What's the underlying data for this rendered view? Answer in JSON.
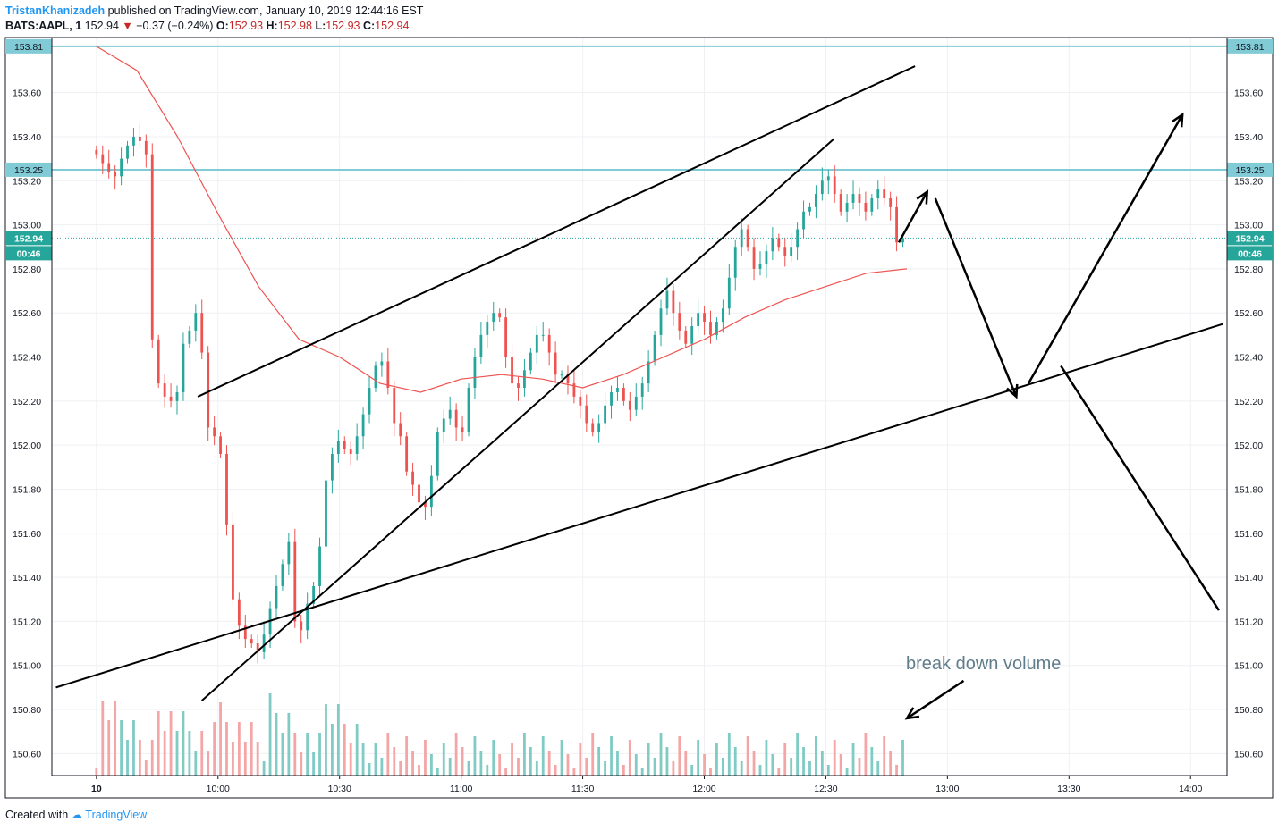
{
  "header": {
    "author": "TristanKhanizadeh",
    "published": "published on TradingView.com, January 10, 2019 12:44:16 EST",
    "symbol": "BATS:AAPL, 1",
    "last": "152.94",
    "change": "−0.37 (−0.24%)",
    "o_label": "O:",
    "o": "152.93",
    "h_label": "H:",
    "h": "152.98",
    "l_label": "L:",
    "l": "152.93",
    "c_label": "C:",
    "c": "152.94"
  },
  "footer": {
    "created_with": "Created with",
    "brand": "TradingView"
  },
  "annotation": {
    "text": "break down volume"
  },
  "colors": {
    "up": "#26a69a",
    "down": "#ef5350",
    "volume_up": "#80cbc4",
    "volume_down": "#f4a6a6",
    "level": "#80cbd6",
    "ma": "#ef5350",
    "price_line": "#26a69a"
  },
  "chart_data": {
    "type": "candlestick",
    "symbol": "BATS:AAPL",
    "interval": "1",
    "ylim": [
      150.5,
      153.85
    ],
    "y_ticks": [
      "153.60",
      "153.40",
      "153.20",
      "153.00",
      "152.80",
      "152.60",
      "152.40",
      "152.20",
      "152.00",
      "151.80",
      "151.60",
      "151.40",
      "151.20",
      "151.00",
      "150.80",
      "150.60"
    ],
    "x_ticks": [
      "10",
      "10:00",
      "10:30",
      "11:00",
      "11:30",
      "12:00",
      "12:30",
      "13:00",
      "13:30",
      "14:00"
    ],
    "x_tick_minutes": [
      0,
      30,
      60,
      90,
      120,
      150,
      180,
      210,
      240,
      270
    ],
    "x_range_minutes": [
      -11,
      279
    ],
    "levels": [
      {
        "price": 153.81,
        "label": "153.81"
      },
      {
        "price": 153.25,
        "label": "153.25"
      }
    ],
    "current_price": {
      "price": 152.94,
      "label": "152.94",
      "countdown": "00:46"
    },
    "close_series": [
      153.32,
      153.28,
      153.24,
      153.22,
      153.3,
      153.36,
      153.4,
      153.38,
      153.32,
      152.48,
      152.28,
      152.22,
      152.2,
      152.24,
      152.46,
      152.52,
      152.6,
      152.42,
      152.08,
      152.04,
      151.96,
      151.64,
      151.3,
      151.18,
      151.12,
      151.1,
      151.06,
      151.14,
      151.26,
      151.36,
      151.46,
      151.56,
      151.2,
      151.16,
      151.28,
      151.36,
      151.54,
      151.84,
      151.96,
      152.02,
      151.98,
      151.96,
      152.04,
      152.14,
      152.26,
      152.36,
      152.38,
      152.26,
      152.1,
      152.04,
      151.88,
      151.82,
      151.74,
      151.72,
      151.86,
      152.06,
      152.12,
      152.16,
      152.08,
      152.06,
      152.26,
      152.4,
      152.5,
      152.56,
      152.6,
      152.58,
      152.4,
      152.28,
      152.26,
      152.34,
      152.42,
      152.5,
      152.5,
      152.42,
      152.32,
      152.32,
      152.28,
      152.22,
      152.18,
      152.1,
      152.06,
      152.1,
      152.18,
      152.24,
      152.26,
      152.2,
      152.16,
      152.22,
      152.28,
      152.38,
      152.5,
      152.62,
      152.7,
      152.6,
      152.52,
      152.46,
      152.54,
      152.6,
      152.56,
      152.5,
      152.56,
      152.62,
      152.76,
      152.9,
      152.98,
      152.9,
      152.8,
      152.82,
      152.88,
      152.94,
      152.9,
      152.86,
      152.9,
      152.98,
      153.06,
      153.08,
      153.14,
      153.2,
      153.22,
      153.14,
      153.06,
      153.1,
      153.14,
      153.1,
      153.06,
      153.12,
      153.16,
      153.12,
      153.08,
      152.92,
      152.94
    ],
    "ma_points": [
      [
        0,
        153.81
      ],
      [
        10,
        153.7
      ],
      [
        20,
        153.4
      ],
      [
        30,
        153.05
      ],
      [
        40,
        152.72
      ],
      [
        50,
        152.48
      ],
      [
        60,
        152.4
      ],
      [
        70,
        152.28
      ],
      [
        80,
        152.24
      ],
      [
        90,
        152.3
      ],
      [
        100,
        152.32
      ],
      [
        110,
        152.3
      ],
      [
        120,
        152.26
      ],
      [
        130,
        152.32
      ],
      [
        140,
        152.4
      ],
      [
        150,
        152.48
      ],
      [
        160,
        152.58
      ],
      [
        170,
        152.66
      ],
      [
        180,
        152.72
      ],
      [
        190,
        152.78
      ],
      [
        200,
        152.8
      ]
    ],
    "trendlines": [
      {
        "p1": [
          25,
          152.22
        ],
        "p2": [
          202,
          153.72
        ]
      },
      {
        "p1": [
          26,
          150.84
        ],
        "p2": [
          182,
          153.39
        ]
      },
      {
        "p1": [
          -10,
          150.9
        ],
        "p2": [
          278,
          152.55
        ]
      }
    ],
    "arrows": [
      {
        "p1": [
          198,
          152.92
        ],
        "p2": [
          205,
          153.15
        ]
      },
      {
        "p1": [
          207,
          153.12
        ],
        "p2": [
          227,
          152.22
        ]
      },
      {
        "p1": [
          230,
          152.28
        ],
        "p2": [
          268,
          153.5
        ]
      }
    ],
    "projection": {
      "p1": [
        238,
        152.36
      ],
      "p2": [
        277,
        151.25
      ]
    },
    "volume_callout": {
      "p1": [
        214,
        150.93
      ],
      "p2": [
        200,
        150.76
      ]
    }
  }
}
